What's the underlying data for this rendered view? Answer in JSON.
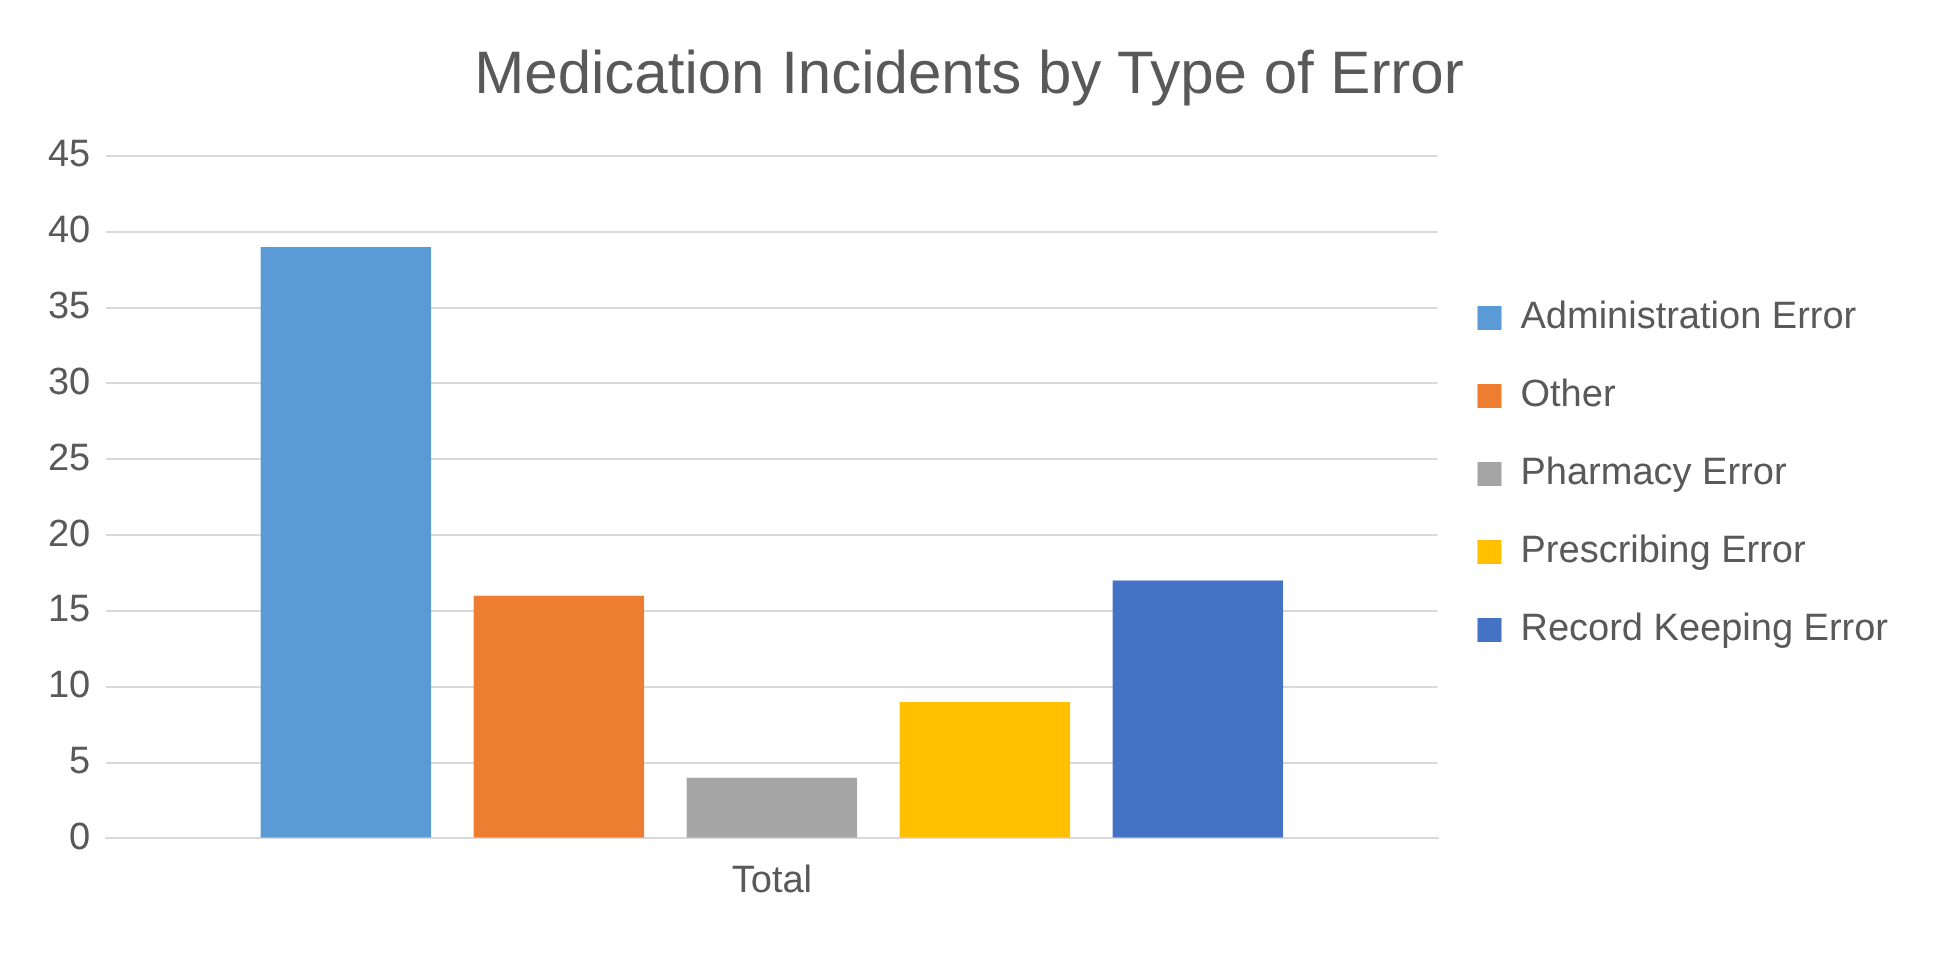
{
  "chart_data": {
    "type": "bar",
    "title": "Medication Incidents by Type of Error",
    "categories": [
      "Total"
    ],
    "series": [
      {
        "name": "Administration Error",
        "color": "#5b9bd5",
        "values": [
          39
        ]
      },
      {
        "name": "Other",
        "color": "#ed7d31",
        "values": [
          16
        ]
      },
      {
        "name": "Pharmacy Error",
        "color": "#a5a5a5",
        "values": [
          4
        ]
      },
      {
        "name": "Prescribing Error",
        "color": "#ffc000",
        "values": [
          9
        ]
      },
      {
        "name": "Record Keeping Error",
        "color": "#4472c4",
        "values": [
          17
        ]
      }
    ],
    "ylim": [
      0,
      45
    ],
    "yticks": [
      0,
      5,
      10,
      15,
      20,
      25,
      30,
      35,
      40,
      45
    ],
    "grid": "y",
    "legend": "right"
  }
}
